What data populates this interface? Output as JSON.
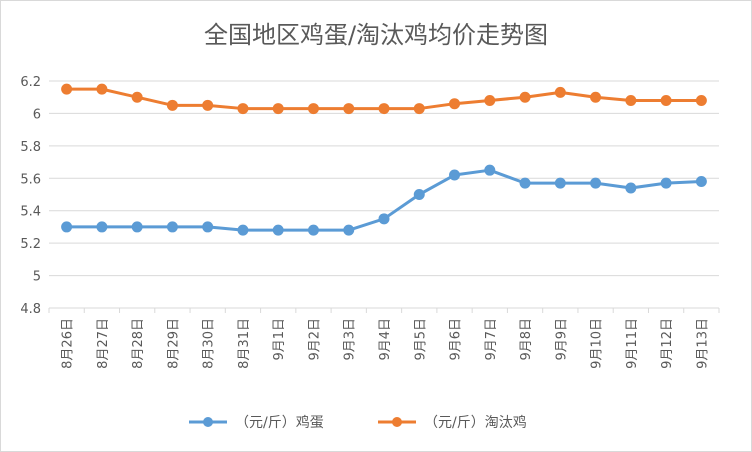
{
  "chart_data": {
    "type": "line",
    "title": "全国地区鸡蛋/淘汰鸡均价走势图",
    "xlabel": "",
    "ylabel": "",
    "categories": [
      "8月26日",
      "8月27日",
      "8月28日",
      "8月29日",
      "8月30日",
      "8月31日",
      "9月1日",
      "9月2日",
      "9月3日",
      "9月4日",
      "9月5日",
      "9月6日",
      "9月7日",
      "9月8日",
      "9月9日",
      "9月10日",
      "9月11日",
      "9月12日",
      "9月13日"
    ],
    "ylim": [
      4.8,
      6.2
    ],
    "yticks": [
      "4.8",
      "5",
      "5.2",
      "5.4",
      "5.6",
      "5.8",
      "6",
      "6.2"
    ],
    "grid": "horizontal",
    "legend": "bottom",
    "series": [
      {
        "name": "（元/斤）鸡蛋",
        "color": "#5b9bd5",
        "values": [
          5.3,
          5.3,
          5.3,
          5.3,
          5.3,
          5.28,
          5.28,
          5.28,
          5.28,
          5.35,
          5.5,
          5.62,
          5.65,
          5.57,
          5.57,
          5.57,
          5.54,
          5.57,
          5.58
        ]
      },
      {
        "name": "（元/斤）淘汰鸡",
        "color": "#ed7d31",
        "values": [
          6.15,
          6.15,
          6.1,
          6.05,
          6.05,
          6.03,
          6.03,
          6.03,
          6.03,
          6.03,
          6.03,
          6.06,
          6.08,
          6.1,
          6.13,
          6.1,
          6.08,
          6.08,
          6.08
        ]
      }
    ]
  }
}
